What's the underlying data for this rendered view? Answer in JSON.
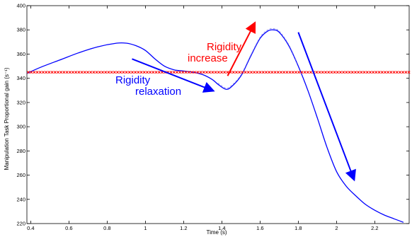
{
  "chart_data": {
    "type": "line",
    "xlabel": "Time (s)",
    "ylabel": "Manipulation Task Proportional gain (s⁻¹)",
    "xlim": [
      0.38,
      2.38
    ],
    "ylim": [
      220,
      400
    ],
    "xticks": [
      "0.4",
      "0.6",
      "0.8",
      "1",
      "1.2",
      "1.4",
      "1.6",
      "1.8",
      "2",
      "2.2"
    ],
    "xtick_values": [
      0.4,
      0.6,
      0.8,
      1.0,
      1.2,
      1.4,
      1.6,
      1.8,
      2.0,
      2.2
    ],
    "yticks": [
      "220",
      "240",
      "260",
      "280",
      "300",
      "320",
      "340",
      "360",
      "380",
      "400"
    ],
    "ytick_values": [
      220,
      240,
      260,
      280,
      300,
      320,
      340,
      360,
      380,
      400
    ],
    "grid": false,
    "series": [
      {
        "style": "solid",
        "color": "#0000ff",
        "x": [
          0.38,
          0.45,
          0.55,
          0.65,
          0.75,
          0.85,
          0.9,
          0.95,
          1.0,
          1.05,
          1.1,
          1.15,
          1.2,
          1.25,
          1.3,
          1.35,
          1.38,
          1.42,
          1.45,
          1.5,
          1.55,
          1.6,
          1.64,
          1.67,
          1.7,
          1.75,
          1.8,
          1.85,
          1.9,
          1.95,
          2.0,
          2.05,
          2.1,
          2.15,
          2.2,
          2.25,
          2.3,
          2.35
        ],
        "y": [
          344,
          349,
          355,
          361,
          366,
          369,
          369,
          367,
          363,
          356,
          350,
          347,
          346,
          345,
          343,
          339,
          335,
          331,
          333,
          342,
          358,
          373,
          379,
          380,
          378,
          367,
          350,
          330,
          307,
          283,
          263,
          251,
          243,
          236,
          231,
          227,
          224,
          221
        ]
      },
      {
        "style": "dashed",
        "color": "#9999ee",
        "x": [
          1.38,
          1.42,
          1.45,
          1.5,
          1.55,
          1.6,
          1.64,
          1.67,
          1.7,
          1.75,
          1.8
        ],
        "y": [
          336,
          332,
          334,
          343,
          359,
          374,
          380,
          381,
          379,
          368,
          351
        ]
      },
      {
        "style": "dotted-x",
        "color": "#ff0000",
        "x": [
          0.38,
          2.38
        ],
        "y": [
          345,
          345
        ]
      }
    ],
    "annotations": [
      {
        "text": [
          "Rigidity",
          "relaxation"
        ],
        "color": "#0000ff",
        "arrow_from": [
          0.93,
          356
        ],
        "arrow_to": [
          1.35,
          330
        ]
      },
      {
        "text": [
          "Rigidity",
          "increase"
        ],
        "color": "#ff0000",
        "arrow_from": [
          1.43,
          342
        ],
        "arrow_to": [
          1.57,
          385
        ]
      },
      {
        "text": [],
        "color": "#0000ff",
        "arrow_from": [
          1.8,
          378
        ],
        "arrow_to": [
          2.09,
          257
        ]
      }
    ]
  }
}
